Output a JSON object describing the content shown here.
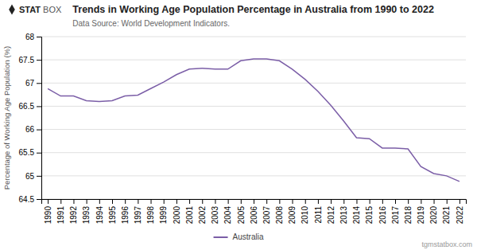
{
  "chart_data": {
    "type": "line",
    "title": "Trends in Working Age Population Percentage in Australia from 1990 to 2022",
    "subtitle": "Data Source: World Development Indicators.",
    "y_label": "Percentage of Working Age Population (%)",
    "annotations": [
      "STAT",
      "BOX",
      "tgmstatbox.com"
    ],
    "x": [
      1990,
      1991,
      1992,
      1993,
      1994,
      1995,
      1996,
      1997,
      1998,
      1999,
      2000,
      2001,
      2002,
      2003,
      2004,
      2005,
      2006,
      2007,
      2008,
      2009,
      2010,
      2011,
      2012,
      2013,
      2014,
      2015,
      2016,
      2017,
      2018,
      2019,
      2020,
      2021,
      2022
    ],
    "series": [
      {
        "name": "Australia",
        "color": "#7b5ea7",
        "values": [
          66.88,
          66.72,
          66.72,
          66.62,
          66.6,
          66.62,
          66.72,
          66.74,
          66.88,
          67.02,
          67.18,
          67.3,
          67.32,
          67.3,
          67.3,
          67.48,
          67.52,
          67.52,
          67.48,
          67.3,
          67.08,
          66.82,
          66.52,
          66.18,
          65.82,
          65.8,
          65.6,
          65.6,
          65.58,
          65.2,
          65.05,
          65.0,
          64.88
        ]
      }
    ],
    "xlim": [
      1989.5,
      2022.5
    ],
    "xticks": [
      1990,
      1991,
      1992,
      1993,
      1994,
      1995,
      1996,
      1997,
      1998,
      1999,
      2000,
      2001,
      2002,
      2003,
      2004,
      2005,
      2006,
      2007,
      2008,
      2009,
      2010,
      2011,
      2012,
      2013,
      2014,
      2015,
      2016,
      2017,
      2018,
      2019,
      2020,
      2021,
      2022
    ],
    "ylim": [
      64.5,
      68.0
    ],
    "yticks": [
      64.5,
      65,
      65.5,
      66,
      66.5,
      67,
      67.5,
      68
    ],
    "grid": true,
    "legend": "bottom"
  }
}
